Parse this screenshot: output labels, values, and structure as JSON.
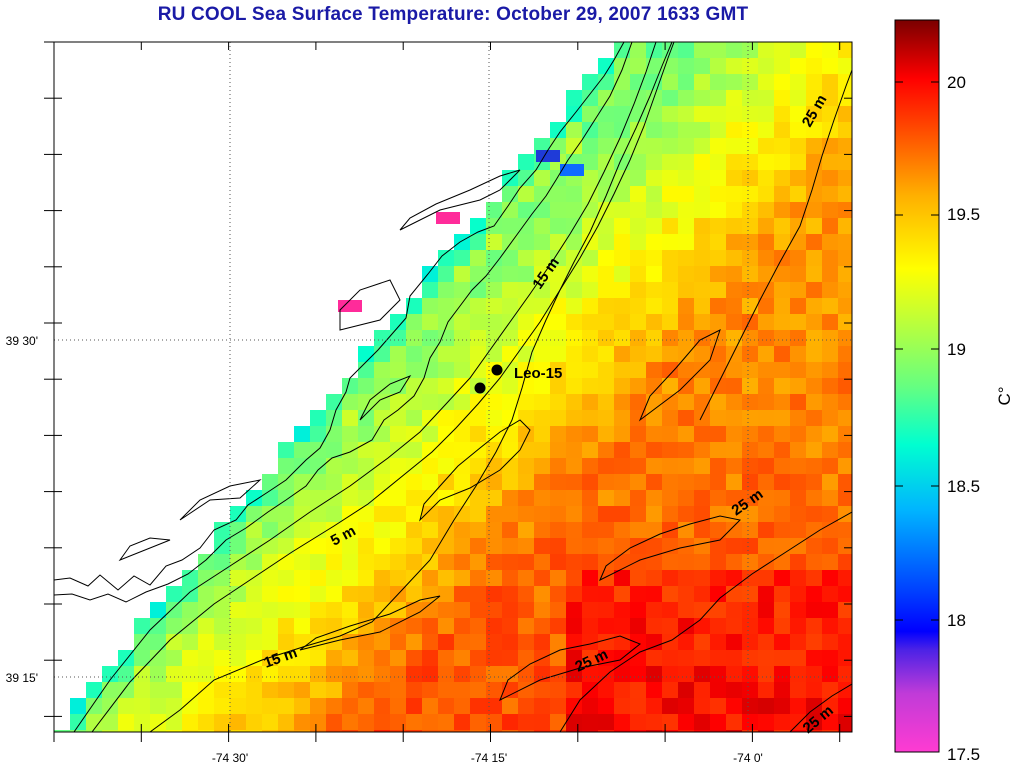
{
  "title": "RU COOL  Sea Surface Temperature:  October 29, 2007 1633 GMT",
  "colors": {
    "title": "#1a1aa6",
    "scale_low": "#ff2bd0",
    "scale_mid_low": "#0000ff",
    "scale_mid": "#00c8ff",
    "scale_mid_high": "#ffff00",
    "scale_high": "#ff0000",
    "scale_top": "#800000",
    "land": "#ffffff",
    "coastline": "#000000"
  },
  "map": {
    "lon_labels": [
      "-74 30'",
      "-74 15'",
      "-74 0'"
    ],
    "lat_labels": [
      "39 30'",
      "39 15'"
    ],
    "gridlines": "dotted",
    "depth_contour_labels": [
      "25 m",
      "15 m",
      "5 m",
      "25 m",
      "15 m",
      "25 m",
      "25 m"
    ],
    "station": {
      "label": "Leo-15",
      "marker_count": 2
    }
  },
  "colorbar": {
    "tick_labels": [
      "20",
      "19.5",
      "19",
      "18.5",
      "18",
      "17.5"
    ],
    "unit_label": "C°"
  }
}
